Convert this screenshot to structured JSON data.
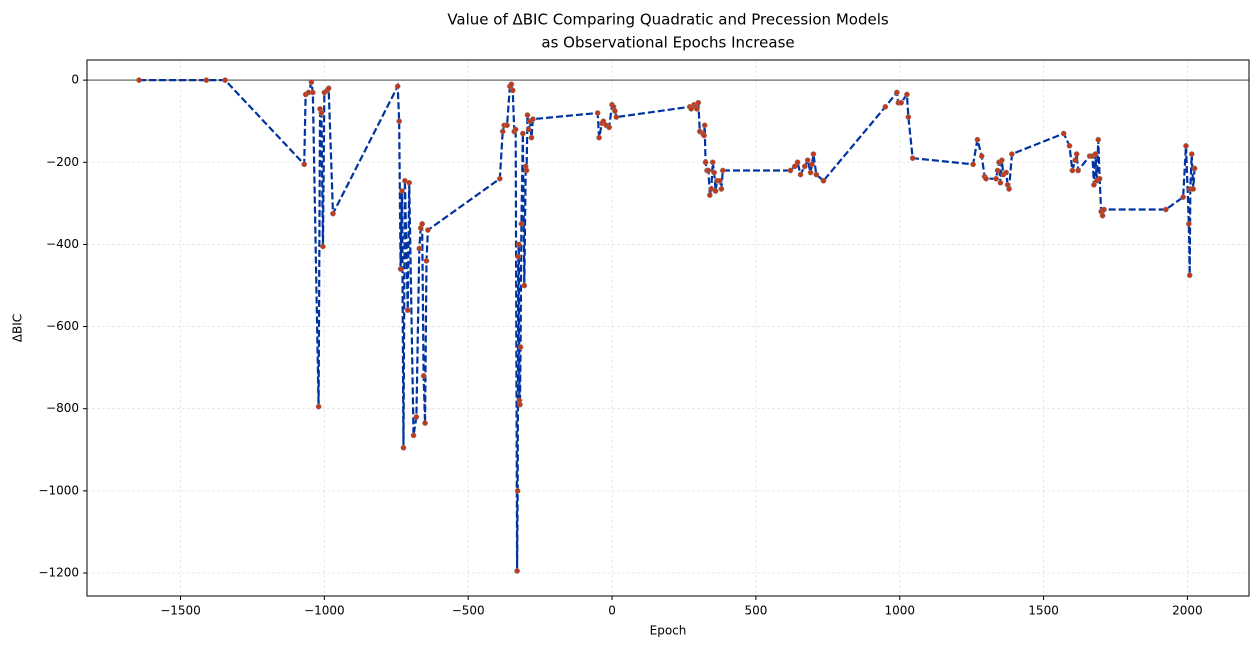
{
  "chart_data": {
    "type": "line",
    "title": [
      "Value of ΔBIC Comparing Quadratic and Precession Models",
      "as Observational Epochs Increase"
    ],
    "x_label": "Epoch",
    "y_label": "ΔBIC",
    "xlim": [
      -1825,
      2214
    ],
    "ylim": [
      -1256,
      49
    ],
    "xticks": [
      {
        "value": -1500,
        "label": "−1500"
      },
      {
        "value": -1000,
        "label": "−1000"
      },
      {
        "value": -500,
        "label": "−500"
      },
      0,
      500,
      1000,
      1500,
      2000
    ],
    "yticks": [
      0,
      {
        "value": -200,
        "label": "−200"
      },
      {
        "value": -400,
        "label": "−400"
      },
      {
        "value": -600,
        "label": "−600"
      },
      {
        "value": -800,
        "label": "−800"
      },
      {
        "value": -1000,
        "label": "−1000"
      },
      {
        "value": -1200,
        "label": "−1200"
      }
    ],
    "grid": true,
    "line_color": "#0033a0",
    "marker_color": "#c0391b",
    "reference_line": 0,
    "reference_color": "#808080",
    "series": [
      {
        "name": "ΔBIC",
        "x": [
          -1644,
          -1410,
          -1345,
          -1070,
          -1065,
          -1055,
          -1045,
          -1040,
          -1020,
          -1015,
          -1010,
          -1005,
          -1000,
          -990,
          -985,
          -970,
          -745,
          -740,
          -735,
          -730,
          -725,
          -720,
          -710,
          -705,
          -690,
          -680,
          -670,
          -665,
          -660,
          -655,
          -650,
          -645,
          -640,
          -390,
          -380,
          -375,
          -365,
          -355,
          -350,
          -345,
          -340,
          -335,
          -330,
          -328,
          -326,
          -324,
          -322,
          -320,
          -318,
          -315,
          -310,
          -305,
          -300,
          -297,
          -294,
          -290,
          -285,
          -280,
          -275,
          -50,
          -45,
          -35,
          -30,
          -20,
          -10,
          0,
          5,
          10,
          15,
          270,
          275,
          285,
          290,
          295,
          300,
          305,
          315,
          320,
          322,
          325,
          330,
          335,
          340,
          345,
          350,
          355,
          360,
          365,
          375,
          380,
          385,
          620,
          635,
          645,
          655,
          670,
          680,
          690,
          695,
          700,
          710,
          735,
          950,
          990,
          995,
          1005,
          1025,
          1030,
          1045,
          1255,
          1270,
          1285,
          1295,
          1300,
          1335,
          1340,
          1345,
          1350,
          1355,
          1360,
          1370,
          1375,
          1380,
          1390,
          1570,
          1590,
          1600,
          1610,
          1615,
          1620,
          1660,
          1670,
          1675,
          1680,
          1685,
          1690,
          1695,
          1700,
          1705,
          1710,
          1925,
          1985,
          1995,
          2005,
          2008,
          2010,
          2015,
          2020,
          2025
        ],
        "values": [
          0,
          0,
          0,
          -205,
          -35,
          -30,
          -5,
          -30,
          -795,
          -70,
          -80,
          -405,
          -30,
          -25,
          -20,
          -325,
          -15,
          -100,
          -460,
          -270,
          -895,
          -245,
          -560,
          -250,
          -865,
          -820,
          -410,
          -360,
          -350,
          -720,
          -835,
          -440,
          -365,
          -240,
          -125,
          -110,
          -110,
          -15,
          -10,
          -25,
          -125,
          -120,
          -1195,
          -1000,
          -430,
          -400,
          -780,
          -790,
          -650,
          -350,
          -130,
          -500,
          -210,
          -220,
          -85,
          -120,
          -100,
          -140,
          -95,
          -80,
          -140,
          -105,
          -100,
          -110,
          -115,
          -60,
          -65,
          -75,
          -90,
          -65,
          -70,
          -60,
          -65,
          -70,
          -55,
          -125,
          -130,
          -135,
          -110,
          -200,
          -220,
          -220,
          -280,
          -265,
          -200,
          -225,
          -270,
          -245,
          -245,
          -265,
          -220,
          -220,
          -210,
          -200,
          -230,
          -210,
          -195,
          -225,
          -205,
          -180,
          -230,
          -245,
          -65,
          -30,
          -55,
          -55,
          -35,
          -90,
          -190,
          -205,
          -145,
          -185,
          -235,
          -240,
          -240,
          -220,
          -200,
          -250,
          -195,
          -230,
          -225,
          -255,
          -265,
          -180,
          -130,
          -160,
          -220,
          -195,
          -180,
          -220,
          -185,
          -185,
          -255,
          -180,
          -245,
          -145,
          -240,
          -320,
          -330,
          -315,
          -315,
          -285,
          -160,
          -350,
          -475,
          -265,
          -180,
          -265,
          -215
        ]
      }
    ]
  }
}
